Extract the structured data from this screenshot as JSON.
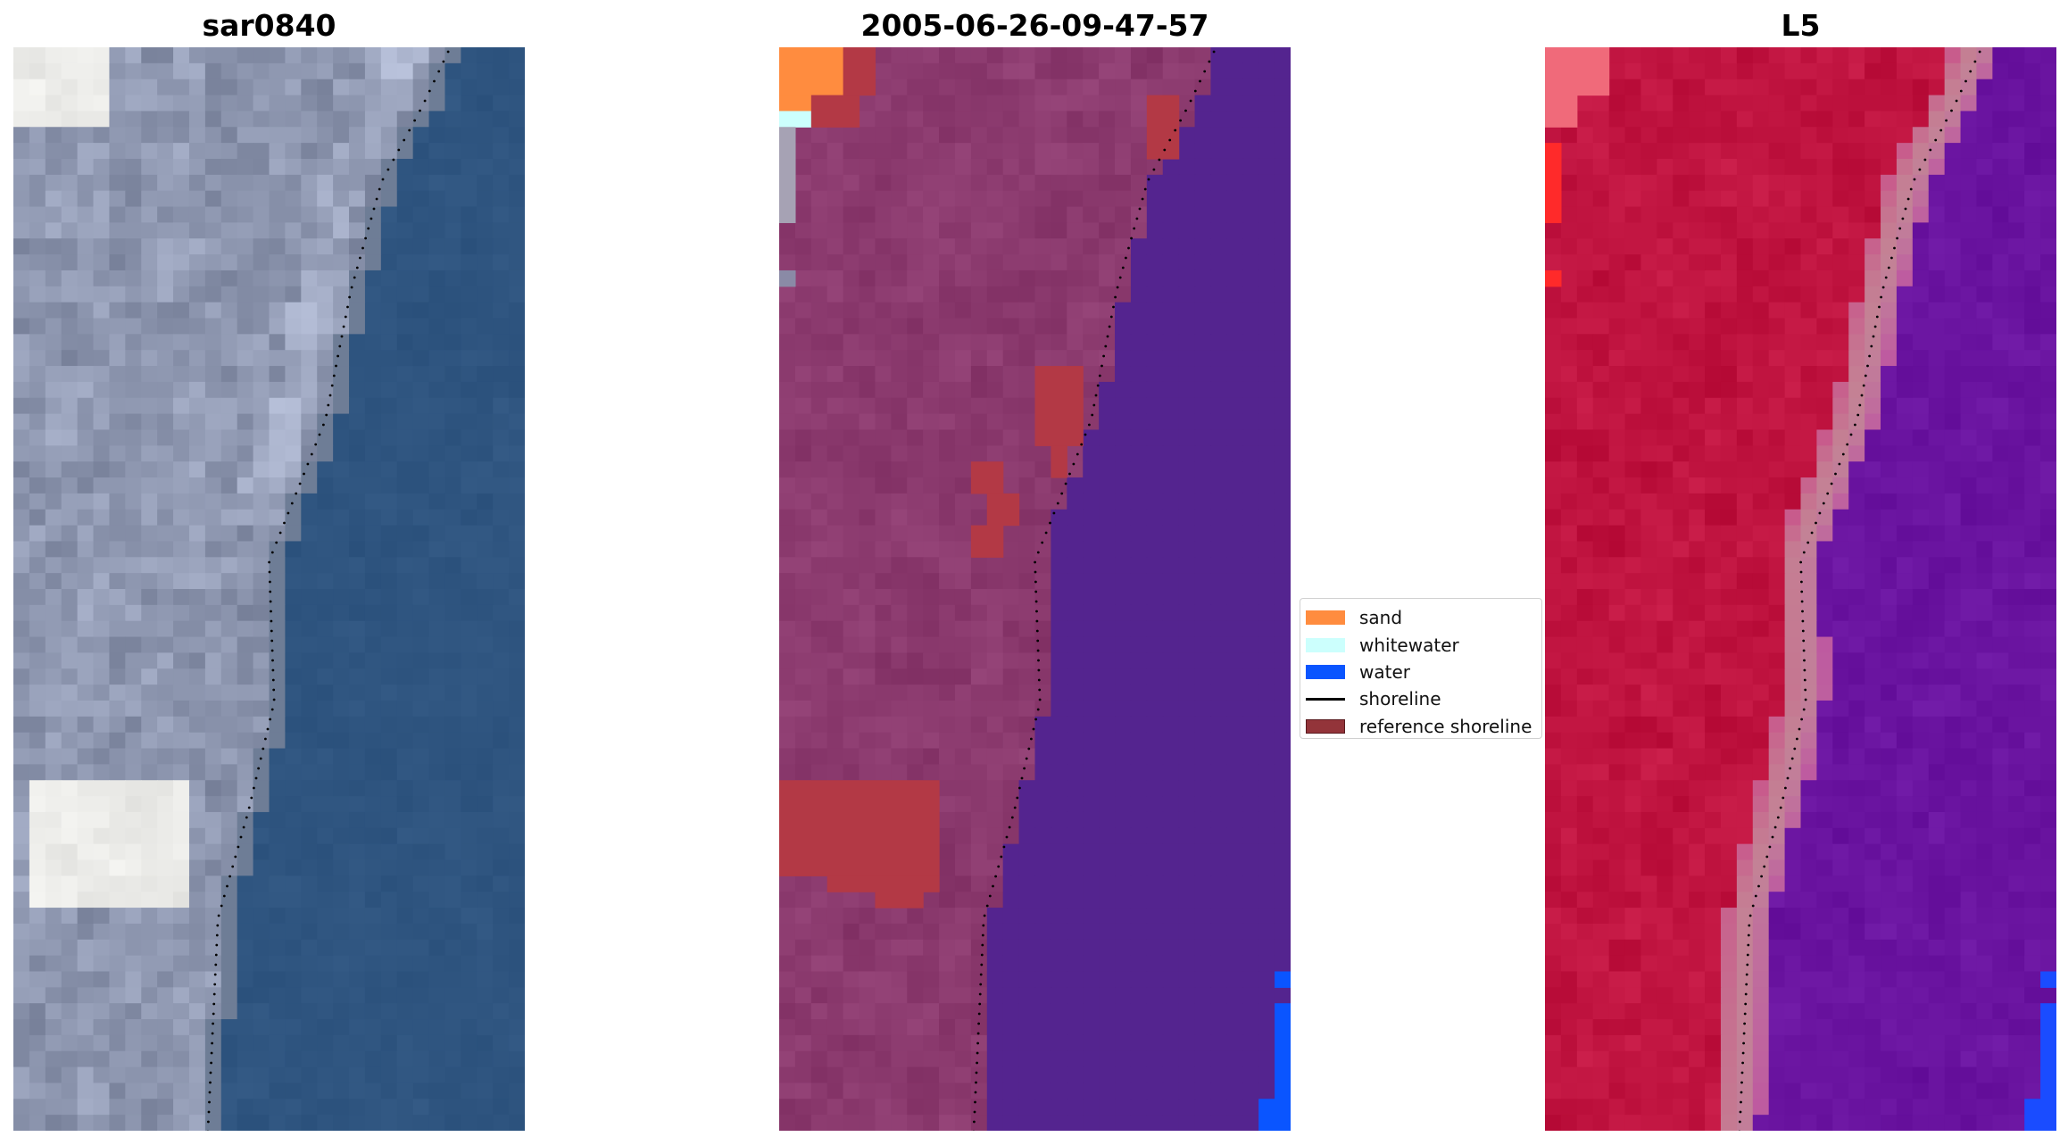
{
  "panels": [
    {
      "title": "sar0840"
    },
    {
      "title": "2005-06-26-09-47-57"
    },
    {
      "title": "L5"
    }
  ],
  "legend": {
    "items": [
      {
        "label": "sand",
        "color": "#ff8c3f",
        "kind": "patch"
      },
      {
        "label": "whitewater",
        "color": "#ccfffd",
        "kind": "patch"
      },
      {
        "label": "water",
        "color": "#0a55ff",
        "kind": "patch"
      },
      {
        "label": "shoreline",
        "color": "#000000",
        "kind": "line"
      },
      {
        "label": "reference shoreline",
        "color": "#93343a",
        "kind": "patch"
      }
    ]
  },
  "colors": {
    "rgb_land": "#8e97a8",
    "rgb_water": "#2f5580",
    "class_land": "#8b3a6e",
    "class_water": "#54248f",
    "class_sand": "#ff8c3f",
    "class_whitewater": "#ccfffd",
    "class_water_pixel": "#0a55ff",
    "class_refshore": "#b33945",
    "index_land": "#c01440",
    "index_water": "#6a14a0",
    "shoreline": "#000000"
  }
}
